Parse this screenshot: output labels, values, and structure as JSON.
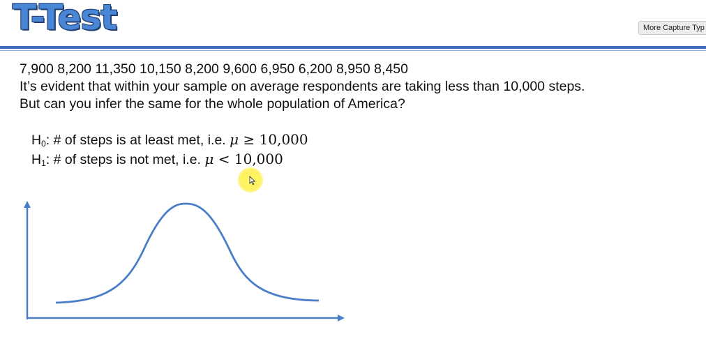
{
  "slide": {
    "title": "T-Test"
  },
  "toolbar": {
    "capture_button_label": "More Capture Typ"
  },
  "content": {
    "sample_line": "7,900 8,200 11,350 10,150 8,200 9,600 6,950 6,200 8,950 8,450",
    "observation_line": "It’s evident that within your sample on average respondents are taking less than 10,000 steps.",
    "question_line": "But can you infer the same for the whole population of America?"
  },
  "hypotheses": {
    "h0": {
      "letter": "H",
      "subscript": "0",
      "text": ": # of steps is at least met, i.e. ",
      "symbol": "μ",
      "operator": "≥",
      "value": "10,000"
    },
    "h1": {
      "letter": "H",
      "subscript": "1",
      "text": ": # of steps is not met, i.e. ",
      "symbol": "μ",
      "operator": "<",
      "value": "10,000"
    }
  },
  "colors": {
    "title_fill": "#4a86d6",
    "title_outline": "#1f3f73",
    "rule": "#3c6fb8",
    "curve": "#4a7fc8",
    "highlight": "#fff15a"
  },
  "icons": {
    "cursor": "pointer-arrow-icon"
  }
}
